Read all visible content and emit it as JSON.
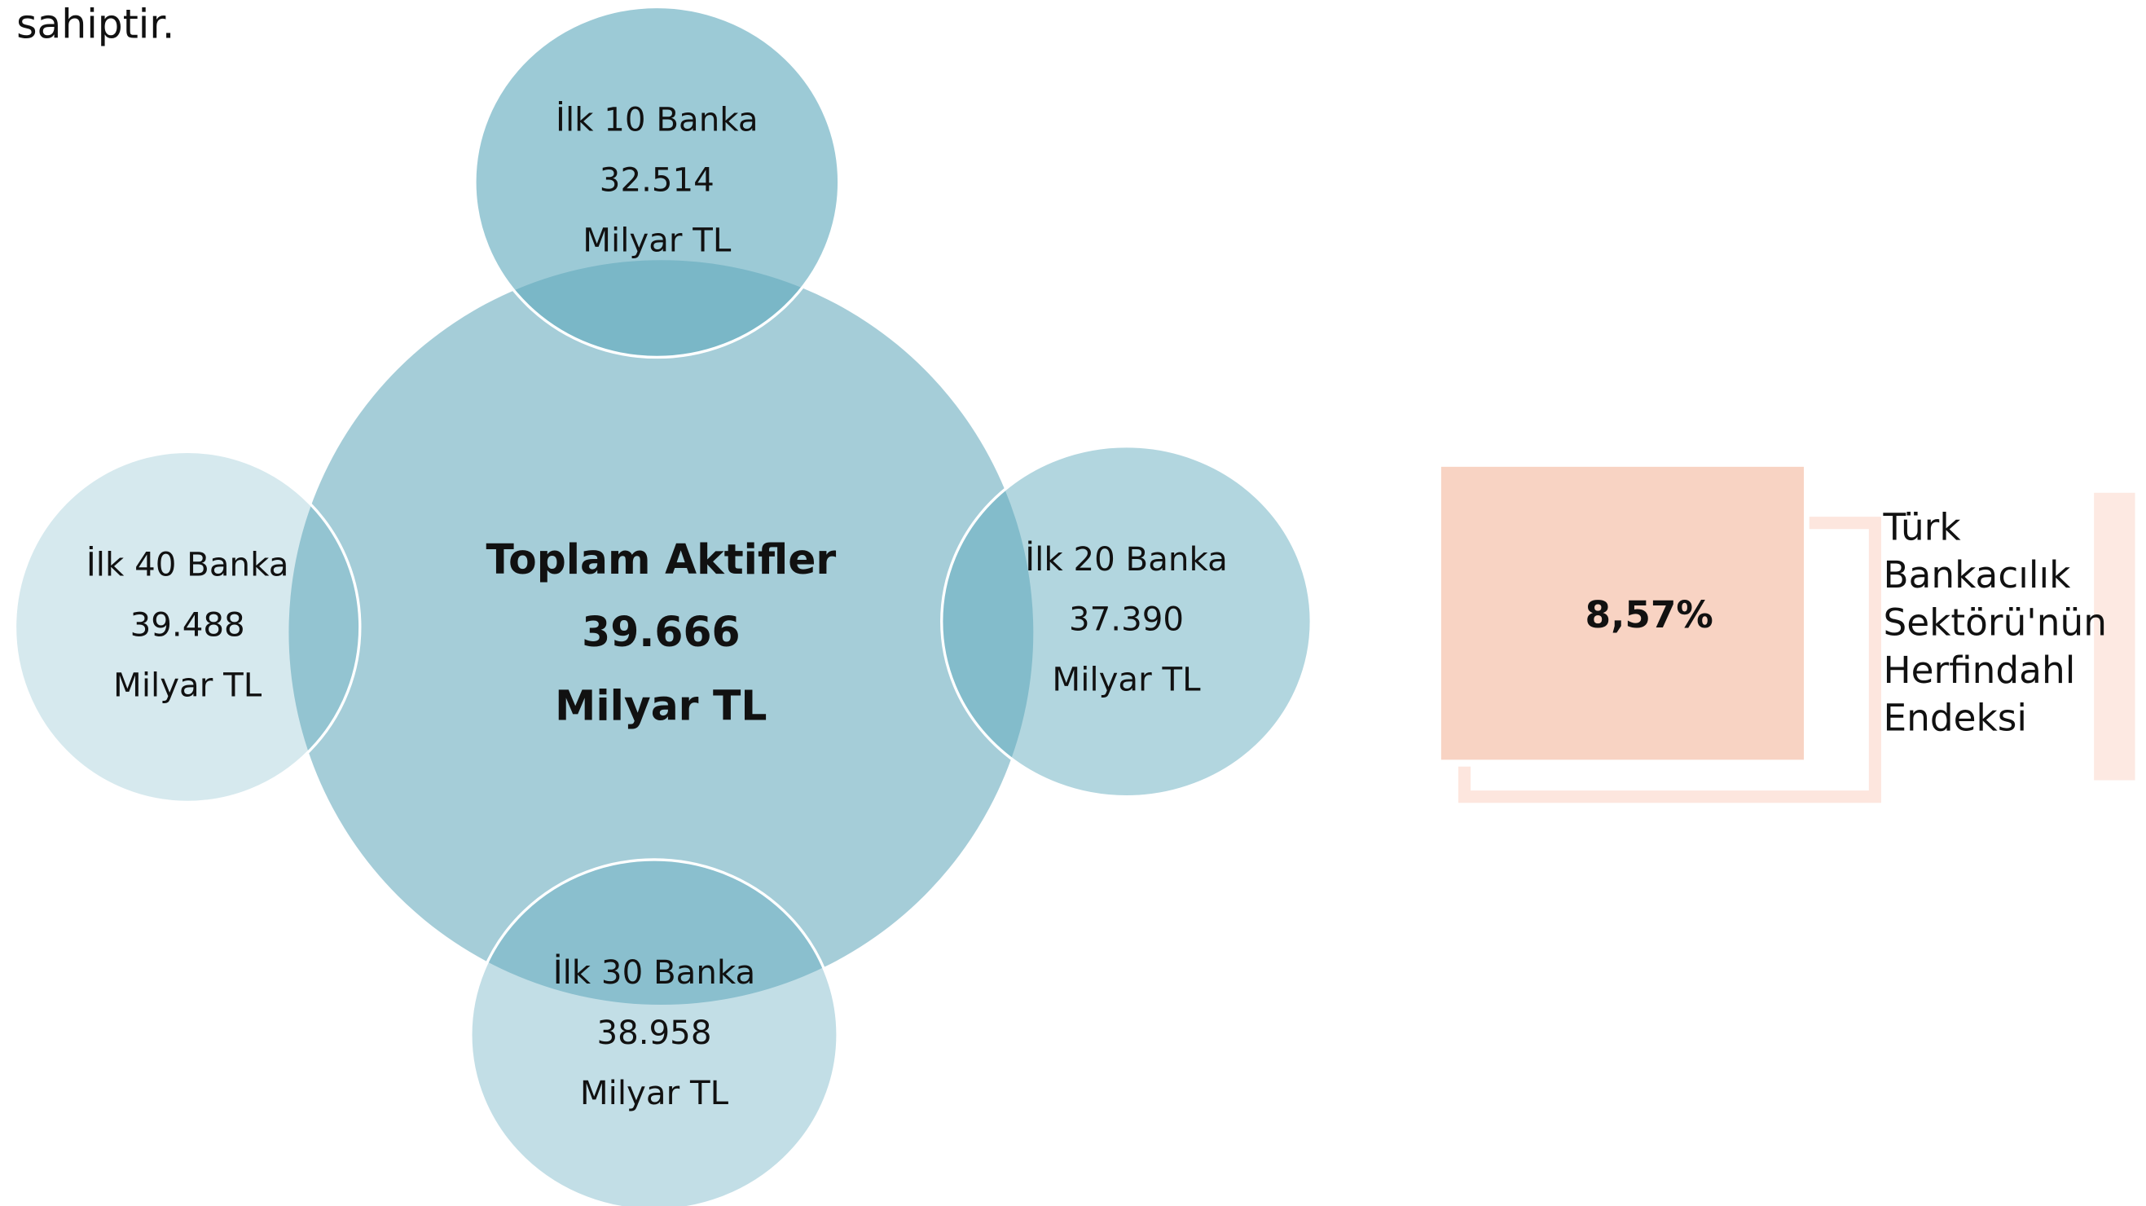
{
  "header": {
    "text": "sahiptir."
  },
  "center": {
    "lines": [
      "Toplam Aktifler",
      "39.666",
      "Milyar TL"
    ]
  },
  "satellites": [
    {
      "label": "İlk 10 Banka",
      "value": "32.514",
      "unit": "Milyar TL"
    },
    {
      "label": "İlk 20 Banka",
      "value": "37.390",
      "unit": "Milyar TL"
    },
    {
      "label": "İlk 30 Banka",
      "value": "38.958",
      "unit": "Milyar TL"
    },
    {
      "label": "İlk 40 Banka",
      "value": "39.488",
      "unit": "Milyar TL"
    }
  ],
  "index_box": {
    "value": "8,57%",
    "label_lines": [
      "Türk",
      "Bankacılık",
      "Sektörü'nün",
      "Herfindahl",
      "Endeksi"
    ]
  }
}
